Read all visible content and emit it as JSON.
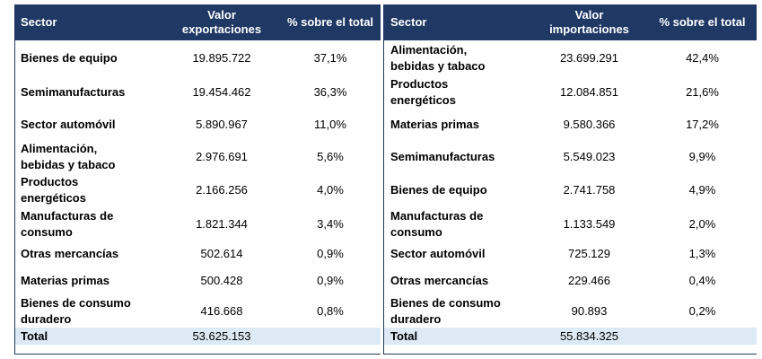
{
  "exports": {
    "headers": {
      "sector": "Sector",
      "value": "Valor exportaciones",
      "pct": "% sobre el total"
    },
    "rows": [
      {
        "sector": "Bienes de equipo",
        "value": "19.895.722",
        "pct": "37,1%"
      },
      {
        "sector": "Semimanufacturas",
        "value": "19.454.462",
        "pct": "36,3%"
      },
      {
        "sector": "Sector automóvil",
        "value": "5.890.967",
        "pct": "11,0%"
      },
      {
        "sector": "Alimentación, bebidas y tabaco",
        "value": "2.976.691",
        "pct": "5,6%"
      },
      {
        "sector": "Productos energéticos",
        "value": "2.166.256",
        "pct": "4,0%"
      },
      {
        "sector": "Manufacturas de consumo",
        "value": "1.821.344",
        "pct": "3,4%"
      },
      {
        "sector": "Otras mercancías",
        "value": "502.614",
        "pct": "0,9%"
      },
      {
        "sector": "Materias primas",
        "value": "500.428",
        "pct": "0,9%"
      },
      {
        "sector": "Bienes de consumo duradero",
        "value": "416.668",
        "pct": "0,8%"
      }
    ],
    "total": {
      "label": "Total",
      "value": "53.625.153"
    }
  },
  "imports": {
    "headers": {
      "sector": "Sector",
      "value": "Valor importaciones",
      "pct": "% sobre el total"
    },
    "rows": [
      {
        "sector": "Alimentación, bebidas y tabaco",
        "value": "23.699.291",
        "pct": "42,4%"
      },
      {
        "sector": "Productos energéticos",
        "value": "12.084.851",
        "pct": "21,6%"
      },
      {
        "sector": "Materias primas",
        "value": "9.580.366",
        "pct": "17,2%"
      },
      {
        "sector": "Semimanufacturas",
        "value": "5.549.023",
        "pct": "9,9%"
      },
      {
        "sector": "Bienes de equipo",
        "value": "2.741.758",
        "pct": "4,9%"
      },
      {
        "sector": "Manufacturas de consumo",
        "value": "1.133.549",
        "pct": "2,0%"
      },
      {
        "sector": "Sector automóvil",
        "value": "725.129",
        "pct": "1,3%"
      },
      {
        "sector": "Otras mercancías",
        "value": "229.466",
        "pct": "0,4%"
      },
      {
        "sector": "Bienes de consumo duradero",
        "value": "90.893",
        "pct": "0,2%"
      }
    ],
    "total": {
      "label": "Total",
      "value": "55.834.325"
    }
  },
  "colors": {
    "header_bg": "#1f3864",
    "header_text": "#ffffff",
    "total_bg": "#dde9f5"
  }
}
